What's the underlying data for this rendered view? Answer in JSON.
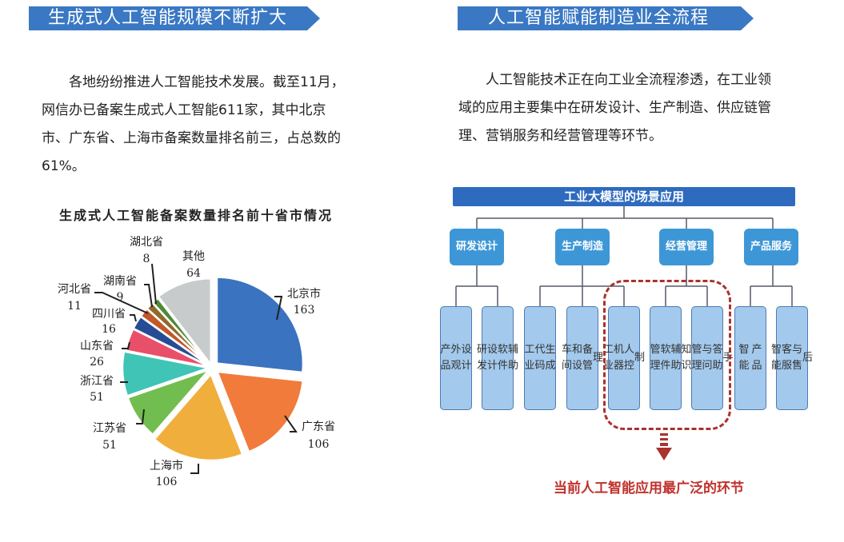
{
  "left_panel": {
    "banner_title": "生成式人工智能规模不断扩大",
    "paragraph_lines": [
      "　　各地纷纷推进人工智能技术发展。截至11月，",
      "网信办已备案生成式人工智能611家，其中北京",
      "市、广东省、上海市备案数量排名前三，占总数的",
      "61%。"
    ]
  },
  "right_panel": {
    "banner_title": "人工智能赋能制造业全流程",
    "paragraph_lines": [
      "　　人工智能技术正在向工业全流程渗透，在工业领",
      "域的应用主要集中在研发设计、生产制造、供应链管",
      "理、营销服务和经营管理等环节。"
    ],
    "diagram": {
      "title": "工业大模型的场景应用",
      "categories": [
        {
          "label": "研发设计",
          "children": [
            "产品外观设计",
            "研发设计软件辅助"
          ]
        },
        {
          "label": "生产制造",
          "children": [
            "工业代码生成",
            "车间和设备管理",
            "工业机器人控制"
          ]
        },
        {
          "label": "经营管理",
          "children": [
            "管理软件辅助",
            "知识管理与问答助手"
          ]
        },
        {
          "label": "产品服务",
          "children": [
            "智能产品",
            "智能客服与售后"
          ]
        }
      ],
      "leaves": [
        {
          "lines": [
            "产品",
            "外观",
            "设计"
          ]
        },
        {
          "lines": [
            "研发",
            "设计",
            "软件",
            "辅助"
          ]
        },
        {
          "lines": [
            "工业",
            "代码",
            "生成"
          ]
        },
        {
          "lines": [
            "车间",
            "和设",
            "备管",
            "理"
          ]
        },
        {
          "lines": [
            "工业",
            "机器",
            "人控",
            "制"
          ]
        },
        {
          "lines": [
            "管理",
            "软件",
            "辅助"
          ]
        },
        {
          "lines": [
            "知识",
            "管理",
            "与问",
            "答助",
            "手"
          ]
        },
        {
          "lines": [
            "智能",
            "产品"
          ]
        },
        {
          "lines": [
            "智能",
            "客服",
            "与售",
            "后"
          ]
        }
      ],
      "highlight_caption": "当前人工智能应用最广泛的环节",
      "colors": {
        "top": "#2e6bbf",
        "category": "#3d97d6",
        "leaf": "#a3c9ec",
        "highlight": "#a8332f"
      }
    }
  },
  "chart_data": {
    "type": "pie",
    "title": "生成式人工智能备案数量排名前十省市情况",
    "categories": [
      "北京市",
      "广东省",
      "上海市",
      "江苏省",
      "浙江省",
      "山东省",
      "四川省",
      "河北省",
      "湖南省",
      "湖北省",
      "其他"
    ],
    "values": [
      163,
      106,
      106,
      51,
      51,
      26,
      16,
      11,
      9,
      8,
      64
    ],
    "colors": [
      "#3a73c0",
      "#f07b3a",
      "#f0ae3c",
      "#72bd4f",
      "#3fc4b6",
      "#e8506a",
      "#264c96",
      "#c0582a",
      "#8e6a2c",
      "#4e8a36",
      "#c8cbcc"
    ],
    "total": 611,
    "start_angle": "12 o'clock, clockwise",
    "exploded": true,
    "legend": "none (callout labels)"
  }
}
